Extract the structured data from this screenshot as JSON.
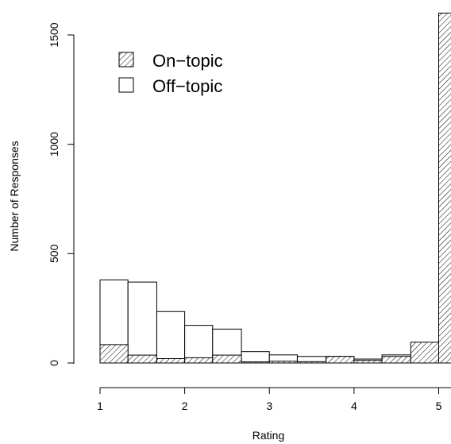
{
  "chart_data": {
    "type": "bar",
    "xlabel": "Rating",
    "ylabel": "Number of Responses",
    "x_ticks": [
      "1",
      "2",
      "3",
      "4",
      "5"
    ],
    "y_ticks": [
      "0",
      "500",
      "1000",
      "1500"
    ],
    "xlim": [
      0.8,
      5.0
    ],
    "ylim": [
      0,
      1600
    ],
    "bins": [
      [
        1.0,
        1.33
      ],
      [
        1.33,
        1.67
      ],
      [
        1.67,
        2.0
      ],
      [
        2.0,
        2.33
      ],
      [
        2.33,
        2.67
      ],
      [
        2.67,
        3.0
      ],
      [
        3.0,
        3.33
      ],
      [
        3.33,
        3.67
      ],
      [
        3.67,
        4.0
      ],
      [
        4.0,
        4.33
      ],
      [
        4.33,
        4.67
      ],
      [
        4.67,
        5.0
      ],
      [
        5.0,
        5.33
      ]
    ],
    "legend_position": "top-left",
    "series": [
      {
        "name": "Off−topic",
        "pattern": "none",
        "values": [
          380,
          370,
          235,
          172,
          155,
          52,
          37,
          30,
          30,
          18,
          37,
          0,
          0
        ]
      },
      {
        "name": "On−topic",
        "pattern": "hatched",
        "values": [
          84,
          36,
          20,
          24,
          36,
          5,
          8,
          6,
          30,
          12,
          30,
          95,
          1600
        ]
      }
    ]
  }
}
